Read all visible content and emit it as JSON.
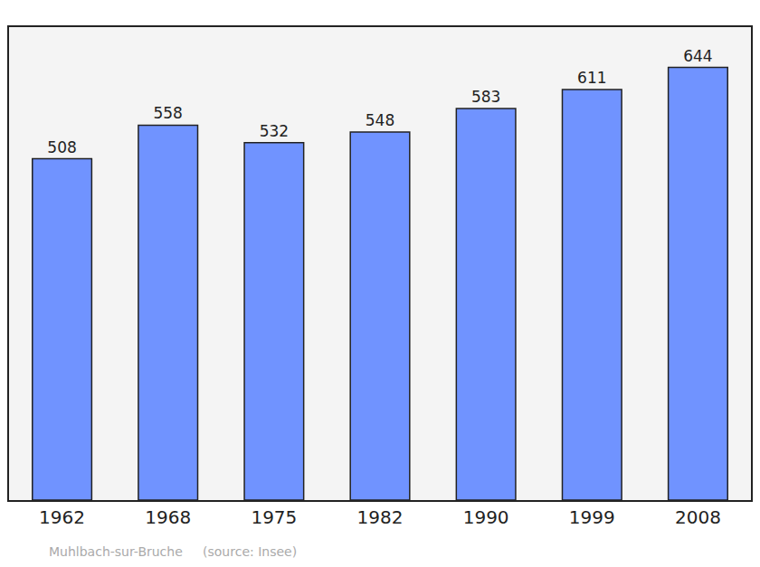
{
  "chart_data": {
    "type": "bar",
    "categories": [
      "1962",
      "1968",
      "1975",
      "1982",
      "1990",
      "1999",
      "2008"
    ],
    "values": [
      508,
      558,
      532,
      548,
      583,
      611,
      644
    ],
    "color": "#7093ff",
    "ylim": [
      0,
      704
    ],
    "grid": false,
    "data_labels": true,
    "tick_labels": "x",
    "caption": "Muhlbach-sur-Bruche     (source: Insee)"
  }
}
